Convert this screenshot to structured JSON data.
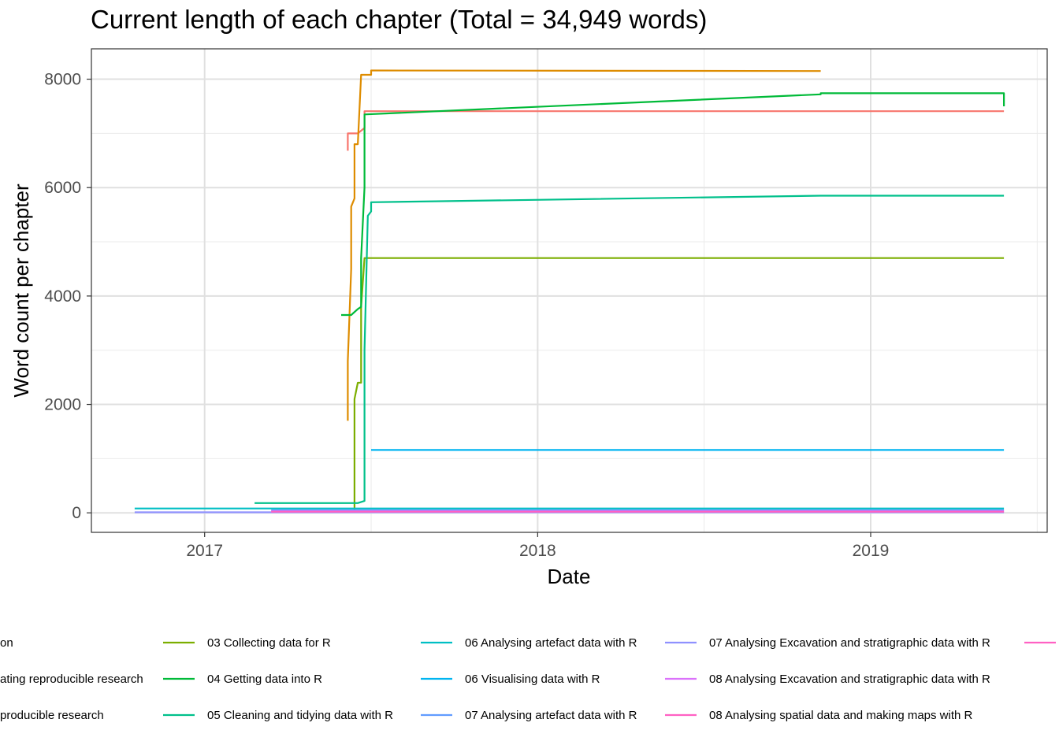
{
  "chart_data": {
    "type": "line",
    "title": "Current length of each chapter (Total = 34,949 words)",
    "xlabel": "Date",
    "ylabel": "Word count per chapter",
    "x_ticks": [
      "2017",
      "2018",
      "2019"
    ],
    "y_ticks": [
      "0",
      "2000",
      "4000",
      "6000",
      "8000"
    ],
    "xlim": [
      2016.66,
      2019.53
    ],
    "ylim": [
      -360,
      8560
    ],
    "grid": true,
    "legend_position": "bottom",
    "series": [
      {
        "name": "",
        "label_fragment": "on",
        "color": "#F8766D",
        "points": [
          [
            2017.43,
            6680
          ],
          [
            2017.43,
            7000
          ],
          [
            2017.46,
            7000
          ],
          [
            2017.48,
            7100
          ],
          [
            2017.48,
            7410
          ],
          [
            2019.4,
            7410
          ]
        ]
      },
      {
        "name": "",
        "label_fragment": "ating reproducible research",
        "color": "#DE8C00",
        "points": [
          [
            2017.43,
            1700
          ],
          [
            2017.43,
            2800
          ],
          [
            2017.44,
            4500
          ],
          [
            2017.44,
            5650
          ],
          [
            2017.45,
            5800
          ],
          [
            2017.45,
            6800
          ],
          [
            2017.46,
            6800
          ],
          [
            2017.47,
            8080
          ],
          [
            2017.5,
            8080
          ],
          [
            2017.5,
            8160
          ],
          [
            2018.85,
            8150
          ]
        ]
      },
      {
        "name": "",
        "label_fragment": "producible research",
        "color": "#B79F00",
        "points": []
      },
      {
        "name": "03 Collecting data for R",
        "color": "#7CAE00",
        "points": [
          [
            2017.45,
            0
          ],
          [
            2017.45,
            2100
          ],
          [
            2017.46,
            2400
          ],
          [
            2017.47,
            2400
          ],
          [
            2017.47,
            3800
          ],
          [
            2017.48,
            4700
          ],
          [
            2019.4,
            4700
          ]
        ]
      },
      {
        "name": "04 Getting data into R",
        "color": "#00BA38",
        "points": [
          [
            2017.41,
            3650
          ],
          [
            2017.44,
            3650
          ],
          [
            2017.46,
            3760
          ],
          [
            2017.47,
            3800
          ],
          [
            2017.47,
            4700
          ],
          [
            2017.48,
            6000
          ],
          [
            2017.48,
            7350
          ],
          [
            2018.85,
            7720
          ],
          [
            2018.85,
            7740
          ],
          [
            2019.4,
            7740
          ],
          [
            2019.4,
            7500
          ]
        ]
      },
      {
        "name": "05 Cleaning and tidying data with R",
        "color": "#00C08B",
        "points": [
          [
            2017.15,
            180
          ],
          [
            2017.46,
            180
          ],
          [
            2017.48,
            220
          ],
          [
            2017.48,
            3000
          ],
          [
            2017.49,
            5480
          ],
          [
            2017.5,
            5560
          ],
          [
            2017.5,
            5730
          ],
          [
            2018.85,
            5850
          ],
          [
            2019.4,
            5850
          ]
        ]
      },
      {
        "name": "06 Analysing artefact data with R",
        "color": "#00BFC4",
        "points": [
          [
            2016.79,
            80
          ],
          [
            2017.46,
            80
          ],
          [
            2017.47,
            80
          ],
          [
            2019.4,
            80
          ]
        ]
      },
      {
        "name": "06 Visualising data with R",
        "color": "#00B4F0",
        "points": [
          [
            2017.5,
            1160
          ],
          [
            2019.4,
            1160
          ]
        ]
      },
      {
        "name": "07 Analysing artefact data with R",
        "color": "#619CFF",
        "points": [
          [
            2017.2,
            50
          ],
          [
            2019.4,
            50
          ]
        ]
      },
      {
        "name": "07 Analysing Excavation and stratigraphic data with R",
        "color": "#8F91FF",
        "points": [
          [
            2016.79,
            10
          ],
          [
            2019.4,
            10
          ]
        ]
      },
      {
        "name": "08 Analysing Excavation and stratigraphic data with R",
        "color": "#DB72FB",
        "points": [
          [
            2017.2,
            30
          ],
          [
            2019.4,
            30
          ]
        ]
      },
      {
        "name": "08 Analysing spatial data and making maps with R",
        "color": "#FF61C3",
        "points": [
          [
            2017.2,
            20
          ],
          [
            2019.4,
            20
          ]
        ]
      },
      {
        "name": "",
        "label_fragment": "",
        "color": "#FF61C3",
        "points": []
      }
    ]
  }
}
